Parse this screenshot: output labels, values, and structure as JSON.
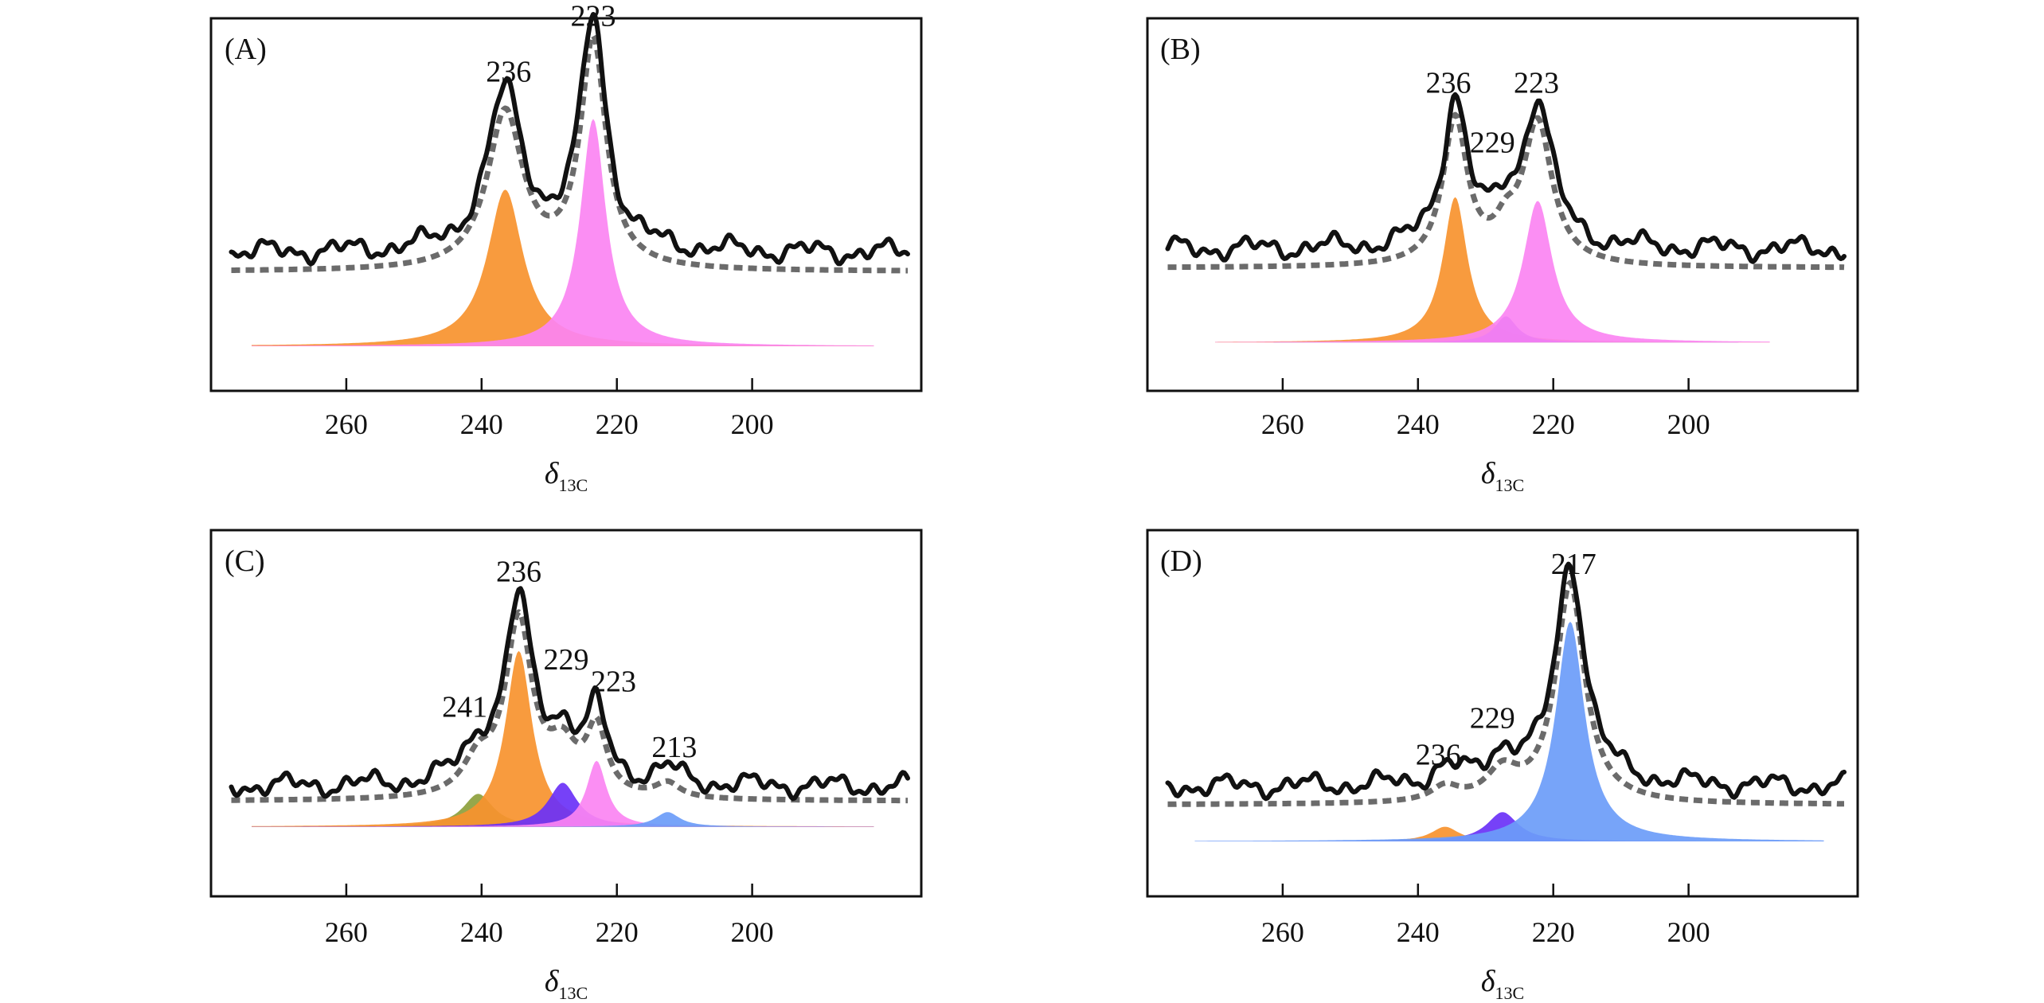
{
  "chart_data": [
    {
      "type": "area",
      "panel_label": "(A)",
      "xlabel_symbol": "δ",
      "xlabel_subscript": "13C",
      "xlim": [
        280,
        175
      ],
      "ylim": [
        0,
        1
      ],
      "xticks": [
        260,
        240,
        220,
        200
      ],
      "xtick_labels": [
        "260",
        "240",
        "220",
        "200"
      ],
      "baseline": 0.12,
      "fit_offset": 0.2,
      "exp_offset": 0.25,
      "x_range": [
        274,
        182
      ],
      "exp_noise_seed": 3,
      "annotations": [
        {
          "text": "236",
          "x": 236,
          "y": 0.83
        },
        {
          "text": "223",
          "x": 223.5,
          "y": 0.98
        }
      ],
      "components": [
        {
          "name": "236 ppm",
          "center": 236.5,
          "height": 0.42,
          "width": 3.2,
          "color": "#f7922e"
        },
        {
          "name": "223 ppm",
          "center": 223.5,
          "height": 0.61,
          "width": 2.3,
          "color": "#fb84f2"
        }
      ]
    },
    {
      "type": "area",
      "panel_label": "(B)",
      "xlabel_symbol": "δ",
      "xlabel_subscript": "13C",
      "xlim": [
        280,
        175
      ],
      "ylim": [
        0,
        1
      ],
      "xticks": [
        260,
        240,
        220,
        200
      ],
      "xtick_labels": [
        "260",
        "240",
        "220",
        "200"
      ],
      "baseline": 0.13,
      "fit_offset": 0.2,
      "exp_offset": 0.25,
      "x_range": [
        270,
        188
      ],
      "exp_noise_seed": 7,
      "annotations": [
        {
          "text": "236",
          "x": 235.5,
          "y": 0.8
        },
        {
          "text": "229",
          "x": 229,
          "y": 0.64
        },
        {
          "text": "223",
          "x": 222.5,
          "y": 0.8
        }
      ],
      "components": [
        {
          "name": "236 ppm",
          "center": 234.5,
          "height": 0.39,
          "width": 2.2,
          "color": "#f7922e"
        },
        {
          "name": "229 ppm",
          "center": 227,
          "height": 0.07,
          "width": 2.0,
          "color": "#6a31f7"
        },
        {
          "name": "223 ppm",
          "center": 222.3,
          "height": 0.38,
          "width": 2.6,
          "color": "#fb84f2"
        }
      ]
    },
    {
      "type": "area",
      "panel_label": "(C)",
      "xlabel_symbol": "δ",
      "xlabel_subscript": "13C",
      "xlim": [
        280,
        175
      ],
      "ylim": [
        0,
        1
      ],
      "xticks": [
        260,
        240,
        220,
        200
      ],
      "xtick_labels": [
        "260",
        "240",
        "220",
        "200"
      ],
      "baseline": 0.19,
      "fit_offset": 0.07,
      "exp_offset": 0.11,
      "x_range": [
        274,
        182
      ],
      "exp_noise_seed": 11,
      "annotations": [
        {
          "text": "236",
          "x": 234.5,
          "y": 0.86
        },
        {
          "text": "241",
          "x": 242.5,
          "y": 0.49
        },
        {
          "text": "229",
          "x": 227.5,
          "y": 0.62
        },
        {
          "text": "223",
          "x": 220.5,
          "y": 0.56
        },
        {
          "text": "213",
          "x": 211.5,
          "y": 0.38
        }
      ],
      "components": [
        {
          "name": "241 ppm",
          "center": 240.5,
          "height": 0.09,
          "width": 2.7,
          "color": "#8da03c"
        },
        {
          "name": "236 ppm",
          "center": 234.5,
          "height": 0.48,
          "width": 2.4,
          "color": "#f7922e"
        },
        {
          "name": "229 ppm",
          "center": 228,
          "height": 0.12,
          "width": 2.6,
          "color": "#6a31f7"
        },
        {
          "name": "223 ppm",
          "center": 223,
          "height": 0.18,
          "width": 1.8,
          "color": "#fb84f2"
        },
        {
          "name": "213 ppm",
          "center": 212.5,
          "height": 0.04,
          "width": 2.2,
          "color": "#6b9cf9"
        }
      ]
    },
    {
      "type": "area",
      "panel_label": "(D)",
      "xlabel_symbol": "δ",
      "xlabel_subscript": "13C",
      "xlim": [
        280,
        175
      ],
      "ylim": [
        0,
        1
      ],
      "xticks": [
        260,
        240,
        220,
        200
      ],
      "xtick_labels": [
        "260",
        "240",
        "220",
        "200"
      ],
      "baseline": 0.15,
      "fit_offset": 0.1,
      "exp_offset": 0.15,
      "x_range": [
        273,
        180
      ],
      "exp_noise_seed": 5,
      "annotations": [
        {
          "text": "217",
          "x": 217,
          "y": 0.88
        },
        {
          "text": "236",
          "x": 237,
          "y": 0.36
        },
        {
          "text": "229",
          "x": 229,
          "y": 0.46
        }
      ],
      "components": [
        {
          "name": "236 ppm",
          "center": 236,
          "height": 0.04,
          "width": 2.5,
          "color": "#f7922e"
        },
        {
          "name": "229 ppm",
          "center": 227.5,
          "height": 0.08,
          "width": 2.8,
          "color": "#6a31f7"
        },
        {
          "name": "217 ppm",
          "center": 217.5,
          "height": 0.6,
          "width": 2.6,
          "color": "#6b9cf9"
        }
      ]
    }
  ]
}
